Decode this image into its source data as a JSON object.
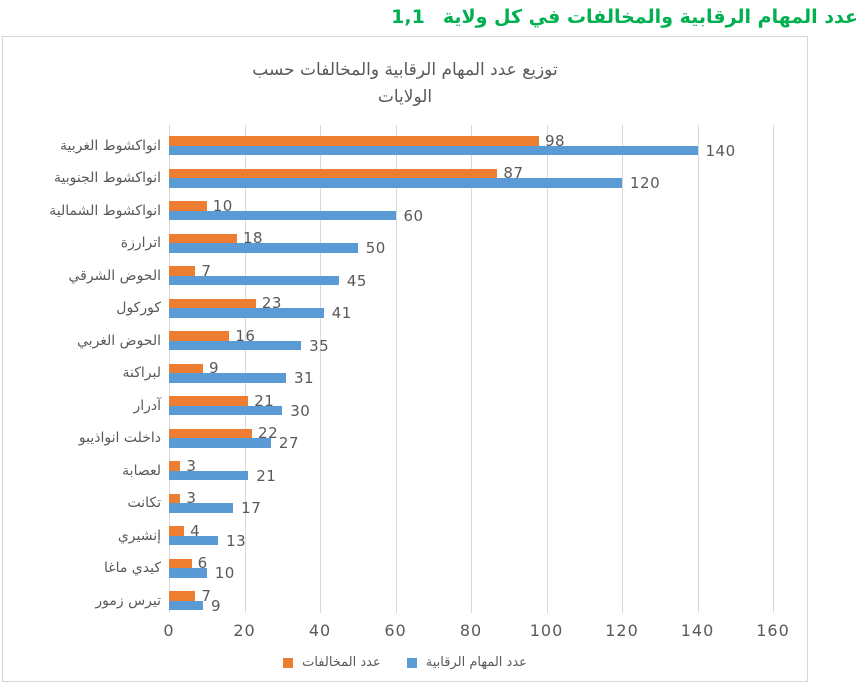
{
  "header": {
    "number": "1,1",
    "title": "عدد المهام الرقابية والمخالفات في كل ولاية",
    "color": "#00B050"
  },
  "chart_data": {
    "type": "bar",
    "orientation": "horizontal",
    "title_lines": [
      "توزيع عدد المهام الرقابية والمخالفات حسب",
      "الولايات"
    ],
    "categories": [
      "انواكشوط الغربية",
      "انواكشوط الجنوبية",
      "انواكشوط الشمالية",
      "اترارزة",
      "الحوض الشرقي",
      "كوركول",
      "الحوض الغربي",
      "لبراكنة",
      "آدرار",
      "داخلت انواذيبو",
      "لعصابة",
      "تكانت",
      "إنشيري",
      "كيدي ماغا",
      "تيرس زمور"
    ],
    "series": [
      {
        "name": "عدد المخالفات",
        "color": "#ED7D31",
        "values": [
          98,
          87,
          10,
          18,
          7,
          23,
          16,
          9,
          21,
          22,
          3,
          3,
          4,
          6,
          7
        ]
      },
      {
        "name": "عدد المهام الرقابية",
        "color": "#5B9BD5",
        "values": [
          140,
          120,
          60,
          50,
          45,
          41,
          35,
          31,
          30,
          27,
          21,
          17,
          13,
          10,
          9
        ]
      }
    ],
    "xlim": [
      0,
      160
    ],
    "x_ticks": [
      0,
      20,
      40,
      60,
      80,
      100,
      120,
      140,
      160
    ],
    "grid": true,
    "legend_position": "bottom",
    "colors": {
      "gridline": "#D9D9D9",
      "text": "#595959",
      "frame_border": "#D6D6D6"
    }
  }
}
